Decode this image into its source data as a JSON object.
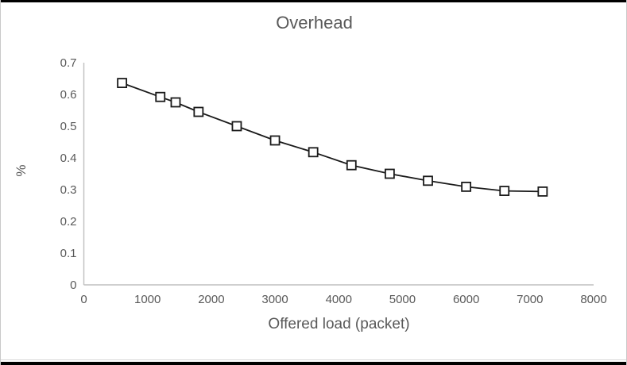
{
  "window": {
    "background": "#ffffff",
    "top_bottom_edge_color": "#000000",
    "side_border_color": "#c9c9c9"
  },
  "chart_data": {
    "type": "line",
    "title": "Overhead",
    "xlabel": "Offered load (packet)",
    "ylabel": "%",
    "x": [
      600,
      1200,
      1440,
      1800,
      2400,
      3000,
      3600,
      4200,
      4800,
      5400,
      6000,
      6600,
      7200
    ],
    "series": [
      {
        "name": "Overhead",
        "values": [
          0.636,
          0.592,
          0.575,
          0.545,
          0.5,
          0.455,
          0.418,
          0.377,
          0.35,
          0.328,
          0.309,
          0.296,
          0.294
        ]
      }
    ],
    "xlim": [
      0,
      8000
    ],
    "ylim": [
      0,
      0.7
    ],
    "xticks": [
      0,
      1000,
      2000,
      3000,
      4000,
      5000,
      6000,
      7000,
      8000
    ],
    "yticks": [
      0,
      0.1,
      0.2,
      0.3,
      0.4,
      0.5,
      0.6,
      0.7
    ],
    "grid": false,
    "legend": "none",
    "marker": "open-square",
    "line_color": "#1a1a1a",
    "marker_fill": "#ffffff",
    "axis_color": "#bfbfbf",
    "text_color": "#595959"
  }
}
